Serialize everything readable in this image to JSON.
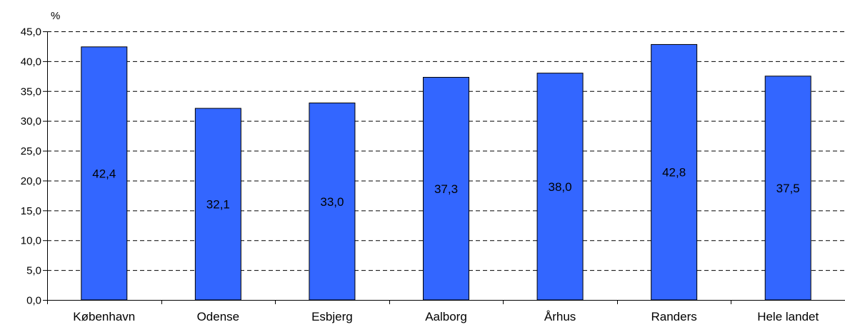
{
  "chart_data": {
    "type": "bar",
    "unit_label": "%",
    "categories": [
      "København",
      "Odense",
      "Esbjerg",
      "Aalborg",
      "Århus",
      "Randers",
      "Hele landet"
    ],
    "values": [
      42.4,
      32.1,
      33.0,
      37.3,
      38.0,
      42.8,
      37.5
    ],
    "data_labels": [
      "42,4",
      "32,1",
      "33,0",
      "37,3",
      "38,0",
      "42,8",
      "37,5"
    ],
    "y_ticks": [
      0,
      5,
      10,
      15,
      20,
      25,
      30,
      35,
      40,
      45
    ],
    "y_tick_labels": [
      "0,0",
      "5,0",
      "10,0",
      "15,0",
      "20,0",
      "25,0",
      "30,0",
      "35,0",
      "40,0",
      "45,0"
    ],
    "ylim": [
      0,
      45
    ],
    "grid": "dashed-horizontal",
    "legend": "none",
    "colors": {
      "bar_fill": "#3366ff",
      "bar_stroke": "#000000",
      "grid": "#000000",
      "axis": "#000000"
    }
  }
}
